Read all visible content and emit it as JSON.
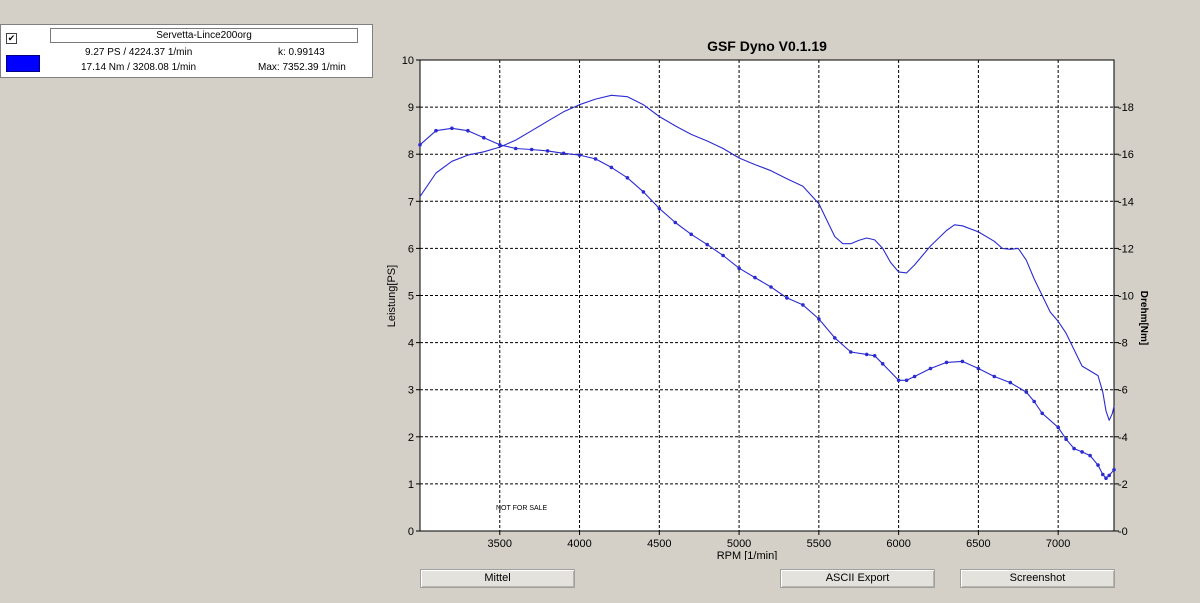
{
  "legend": {
    "checkbox_mark": "✔",
    "run_name": "Servetta-Lince200org",
    "power_peak": "9.27 PS / 4224.37 1/min",
    "torque_peak": "17.14 Nm / 3208.08 1/min",
    "correction_factor": "k: 0.99143",
    "max_rpm": "Max: 7352.39 1/min",
    "swatch_color": "#0000ff"
  },
  "buttons": {
    "mittel": "Mittel",
    "ascii_export": "ASCII Export",
    "screenshot": "Screenshot"
  },
  "chart_data": {
    "type": "line",
    "title": "GSF Dyno V0.1.19",
    "xlabel": "RPM [1/min]",
    "ylabel_left": "Leistung[PS]",
    "ylabel_right": "Drehm[Nm]",
    "watermark": "NOT FOR SALE",
    "xlim": [
      3000,
      7350
    ],
    "ylim_left": [
      0,
      10
    ],
    "ylim_right": [
      0,
      20
    ],
    "x_ticks": [
      3500,
      4000,
      4500,
      5000,
      5500,
      6000,
      6500,
      7000
    ],
    "y_ticks_left": [
      0,
      1,
      2,
      3,
      4,
      5,
      6,
      7,
      8,
      9,
      10
    ],
    "y_ticks_right": [
      0,
      2,
      4,
      6,
      8,
      10,
      12,
      14,
      16,
      18
    ],
    "grid": true,
    "line_color": "#2b2bd0",
    "series": [
      {
        "axis": "left",
        "markers": false,
        "points": [
          [
            3000,
            7.1
          ],
          [
            3100,
            7.6
          ],
          [
            3200,
            7.85
          ],
          [
            3300,
            7.98
          ],
          [
            3400,
            8.05
          ],
          [
            3500,
            8.15
          ],
          [
            3600,
            8.3
          ],
          [
            3700,
            8.5
          ],
          [
            3800,
            8.7
          ],
          [
            3900,
            8.9
          ],
          [
            4000,
            9.05
          ],
          [
            4100,
            9.17
          ],
          [
            4200,
            9.25
          ],
          [
            4300,
            9.22
          ],
          [
            4400,
            9.05
          ],
          [
            4500,
            8.8
          ],
          [
            4600,
            8.6
          ],
          [
            4700,
            8.42
          ],
          [
            4800,
            8.28
          ],
          [
            4900,
            8.12
          ],
          [
            5000,
            7.92
          ],
          [
            5100,
            7.78
          ],
          [
            5200,
            7.65
          ],
          [
            5300,
            7.48
          ],
          [
            5400,
            7.32
          ],
          [
            5500,
            6.95
          ],
          [
            5550,
            6.6
          ],
          [
            5600,
            6.25
          ],
          [
            5650,
            6.1
          ],
          [
            5700,
            6.1
          ],
          [
            5750,
            6.17
          ],
          [
            5800,
            6.22
          ],
          [
            5850,
            6.18
          ],
          [
            5900,
            6.0
          ],
          [
            5950,
            5.7
          ],
          [
            6000,
            5.5
          ],
          [
            6050,
            5.48
          ],
          [
            6100,
            5.65
          ],
          [
            6200,
            6.05
          ],
          [
            6300,
            6.38
          ],
          [
            6350,
            6.5
          ],
          [
            6400,
            6.48
          ],
          [
            6500,
            6.35
          ],
          [
            6600,
            6.15
          ],
          [
            6650,
            6.0
          ],
          [
            6700,
            5.98
          ],
          [
            6750,
            6.0
          ],
          [
            6800,
            5.75
          ],
          [
            6850,
            5.35
          ],
          [
            6900,
            5.0
          ],
          [
            6950,
            4.65
          ],
          [
            7000,
            4.45
          ],
          [
            7050,
            4.2
          ],
          [
            7100,
            3.85
          ],
          [
            7150,
            3.5
          ],
          [
            7200,
            3.4
          ],
          [
            7250,
            3.3
          ],
          [
            7280,
            2.95
          ],
          [
            7300,
            2.55
          ],
          [
            7320,
            2.35
          ],
          [
            7340,
            2.5
          ],
          [
            7350,
            2.65
          ]
        ]
      },
      {
        "axis": "left",
        "markers": true,
        "points": [
          [
            3000,
            8.2
          ],
          [
            3100,
            8.5
          ],
          [
            3200,
            8.55
          ],
          [
            3300,
            8.5
          ],
          [
            3400,
            8.35
          ],
          [
            3500,
            8.2
          ],
          [
            3600,
            8.12
          ],
          [
            3700,
            8.1
          ],
          [
            3800,
            8.07
          ],
          [
            3900,
            8.02
          ],
          [
            4000,
            7.98
          ],
          [
            4100,
            7.9
          ],
          [
            4200,
            7.72
          ],
          [
            4300,
            7.5
          ],
          [
            4400,
            7.2
          ],
          [
            4500,
            6.85
          ],
          [
            4600,
            6.55
          ],
          [
            4700,
            6.3
          ],
          [
            4800,
            6.08
          ],
          [
            4900,
            5.85
          ],
          [
            5000,
            5.58
          ],
          [
            5100,
            5.38
          ],
          [
            5200,
            5.18
          ],
          [
            5300,
            4.95
          ],
          [
            5400,
            4.8
          ],
          [
            5500,
            4.5
          ],
          [
            5600,
            4.1
          ],
          [
            5700,
            3.8
          ],
          [
            5800,
            3.75
          ],
          [
            5850,
            3.72
          ],
          [
            5900,
            3.55
          ],
          [
            6000,
            3.2
          ],
          [
            6050,
            3.2
          ],
          [
            6100,
            3.28
          ],
          [
            6200,
            3.45
          ],
          [
            6300,
            3.58
          ],
          [
            6400,
            3.6
          ],
          [
            6500,
            3.45
          ],
          [
            6600,
            3.28
          ],
          [
            6700,
            3.15
          ],
          [
            6800,
            2.95
          ],
          [
            6850,
            2.75
          ],
          [
            6900,
            2.5
          ],
          [
            7000,
            2.2
          ],
          [
            7050,
            1.95
          ],
          [
            7100,
            1.75
          ],
          [
            7150,
            1.68
          ],
          [
            7200,
            1.6
          ],
          [
            7250,
            1.4
          ],
          [
            7280,
            1.2
          ],
          [
            7300,
            1.12
          ],
          [
            7320,
            1.18
          ],
          [
            7350,
            1.3
          ]
        ]
      }
    ]
  }
}
